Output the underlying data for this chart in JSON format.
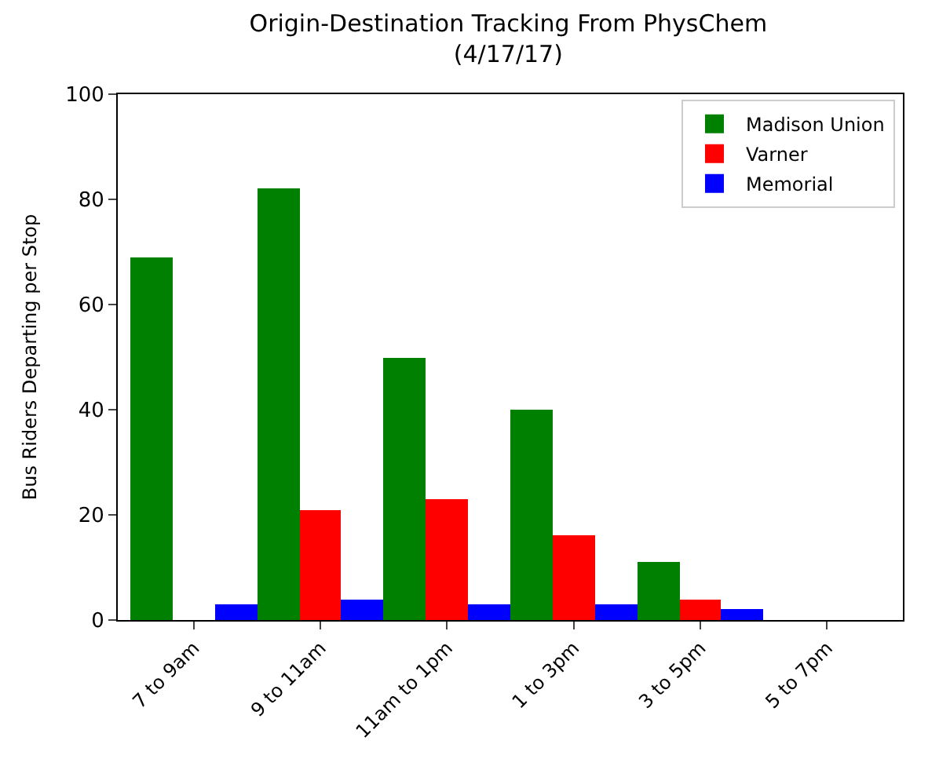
{
  "chart_data": {
    "type": "bar",
    "title": "Origin-Destination Tracking From PhysChem\n(4/17/17)",
    "ylabel": "Bus Riders Departing per Stop",
    "categories": [
      "7 to 9am",
      "9 to 11am",
      "11am to 1pm",
      "1 to 3pm",
      "3 to 5pm",
      "5 to 7pm"
    ],
    "series": [
      {
        "name": "Madison Union",
        "color": "#008000",
        "values": [
          69,
          82,
          50,
          40,
          11,
          0
        ]
      },
      {
        "name": "Varner",
        "color": "#ff0000",
        "values": [
          0,
          21,
          23,
          16,
          4,
          0
        ]
      },
      {
        "name": "Memorial",
        "color": "#0000ff",
        "values": [
          3,
          4,
          3,
          3,
          2,
          0
        ]
      }
    ],
    "ylim": [
      0,
      100
    ],
    "yticks": [
      0,
      20,
      40,
      60,
      80,
      100
    ],
    "legend": "top right"
  }
}
